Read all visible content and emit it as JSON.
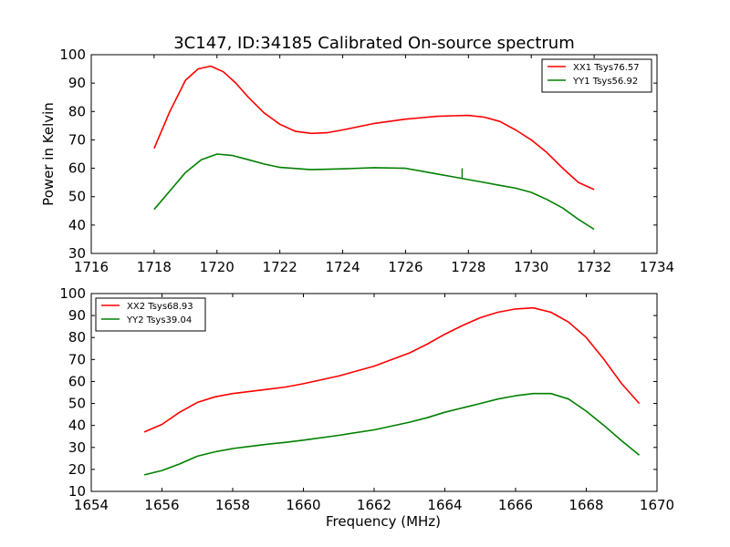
{
  "figure": {
    "title": "3C147, ID:34185 Calibrated On-source spectrum"
  },
  "chart_data": [
    {
      "type": "line",
      "panel": "top",
      "title": "3C147, ID:34185 Calibrated On-source spectrum",
      "xlabel": "",
      "ylabel": "Power in Kelvin",
      "xlim": [
        1716,
        1734
      ],
      "ylim": [
        30,
        100
      ],
      "xticks": [
        1716,
        1718,
        1720,
        1722,
        1724,
        1726,
        1728,
        1730,
        1732,
        1734
      ],
      "yticks": [
        30,
        40,
        50,
        60,
        70,
        80,
        90,
        100
      ],
      "grid": false,
      "legend_position": "top-right",
      "series": [
        {
          "name": "XX1 Tsys76.57",
          "color": "#ff0000",
          "x": [
            1718.0,
            1718.5,
            1719.0,
            1719.4,
            1719.8,
            1720.2,
            1720.6,
            1721.0,
            1721.5,
            1722.0,
            1722.5,
            1723.0,
            1723.5,
            1724.0,
            1725.0,
            1726.0,
            1727.0,
            1727.5,
            1728.0,
            1728.5,
            1729.0,
            1729.5,
            1730.0,
            1730.5,
            1731.0,
            1731.5,
            1732.0
          ],
          "y": [
            67,
            80,
            91,
            95,
            96,
            94,
            90,
            85,
            79.5,
            75.5,
            73,
            72.3,
            72.5,
            73.5,
            75.8,
            77.3,
            78.3,
            78.5,
            78.6,
            78,
            76.5,
            73.5,
            70,
            65.5,
            60,
            55,
            52.5
          ]
        },
        {
          "name": "YY1 Tsys56.92",
          "color": "#008000",
          "x": [
            1718.0,
            1718.5,
            1719.0,
            1719.5,
            1720.0,
            1720.5,
            1721.0,
            1721.5,
            1722.0,
            1723.0,
            1724.0,
            1725.0,
            1726.0,
            1726.5,
            1727.0,
            1727.5,
            1728.0,
            1728.5,
            1729.0,
            1729.5,
            1730.0,
            1730.5,
            1731.0,
            1731.5,
            1732.0
          ],
          "y": [
            45.5,
            52,
            58.5,
            63,
            65,
            64.5,
            63,
            61.5,
            60.3,
            59.5,
            59.8,
            60.2,
            60,
            59,
            58,
            57,
            56,
            55,
            54,
            53,
            51.5,
            49,
            46,
            42,
            38.5
          ]
        }
      ]
    },
    {
      "type": "line",
      "panel": "bottom",
      "title": "",
      "xlabel": "Frequency (MHz)",
      "ylabel": "",
      "xlim": [
        1654,
        1670
      ],
      "ylim": [
        10,
        100
      ],
      "xticks": [
        1654,
        1656,
        1658,
        1660,
        1662,
        1664,
        1666,
        1668,
        1670
      ],
      "yticks": [
        10,
        20,
        30,
        40,
        50,
        60,
        70,
        80,
        90,
        100
      ],
      "grid": false,
      "legend_position": "top-left",
      "series": [
        {
          "name": "XX2 Tsys68.93",
          "color": "#ff0000",
          "x": [
            1655.5,
            1656.0,
            1656.5,
            1657.0,
            1657.5,
            1658.0,
            1658.5,
            1659.0,
            1659.5,
            1660.0,
            1661.0,
            1662.0,
            1663.0,
            1663.5,
            1664.0,
            1664.5,
            1665.0,
            1665.5,
            1666.0,
            1666.5,
            1667.0,
            1667.5,
            1668.0,
            1668.5,
            1669.0,
            1669.5
          ],
          "y": [
            37,
            40.5,
            46,
            50.5,
            53,
            54.5,
            55.5,
            56.5,
            57.5,
            59,
            62.5,
            67,
            73,
            77,
            81.5,
            85.5,
            89,
            91.5,
            93,
            93.5,
            91.5,
            87,
            80,
            70,
            59,
            50
          ]
        },
        {
          "name": "YY2 Tsys39.04",
          "color": "#008000",
          "x": [
            1655.5,
            1656.0,
            1656.5,
            1657.0,
            1657.5,
            1658.0,
            1658.5,
            1659.0,
            1659.5,
            1660.0,
            1661.0,
            1662.0,
            1663.0,
            1663.5,
            1664.0,
            1664.5,
            1665.0,
            1665.5,
            1666.0,
            1666.5,
            1667.0,
            1667.5,
            1668.0,
            1668.5,
            1669.0,
            1669.5
          ],
          "y": [
            17.5,
            19.5,
            22.5,
            26,
            28,
            29.5,
            30.5,
            31.5,
            32.3,
            33.3,
            35.5,
            38,
            41.5,
            43.5,
            46,
            48,
            50,
            52,
            53.5,
            54.5,
            54.5,
            52,
            46.5,
            40,
            33,
            26.5
          ]
        }
      ]
    }
  ]
}
